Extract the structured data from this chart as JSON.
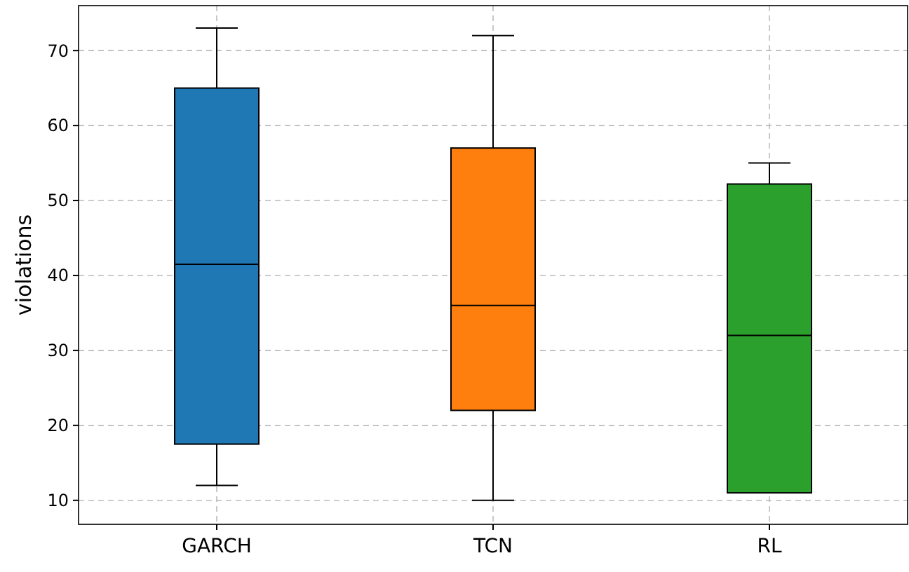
{
  "chart_data": {
    "type": "box",
    "ylabel": "violations",
    "categories": [
      "GARCH",
      "TCN",
      "RL"
    ],
    "boxes": [
      {
        "low": 12,
        "q1": 17.5,
        "median": 41.5,
        "q3": 65,
        "high": 73
      },
      {
        "low": 10,
        "q1": 22,
        "median": 36,
        "q3": 57,
        "high": 72
      },
      {
        "low": 11,
        "q1": 11,
        "median": 32,
        "q3": 52.2,
        "high": 55
      }
    ],
    "colors": [
      "#1f77b4",
      "#ff7f0e",
      "#2ca02c"
    ],
    "ylim": [
      6.8,
      76
    ],
    "yticks": [
      10,
      20,
      30,
      40,
      50,
      60,
      70
    ],
    "grid": true
  }
}
